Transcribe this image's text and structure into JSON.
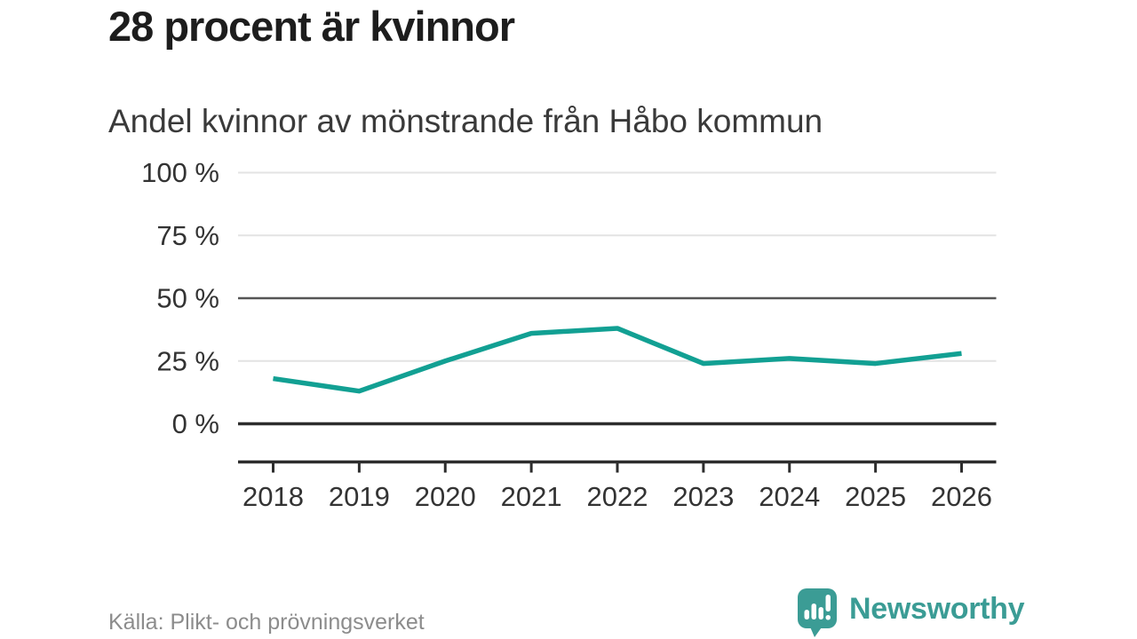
{
  "brand": {
    "name": "Newsworthy"
  },
  "colors": {
    "line": "#12a093",
    "brand_teal": "#3b9c95",
    "grid_light": "#e3e3e3",
    "grid_strong": "#555555",
    "axis": "#2d2d2d",
    "title_text": "#1d1d1d",
    "subtitle_text": "#3a3a3a",
    "tick_text": "#333333",
    "muted_text": "#8c8c8c"
  },
  "chart_data": {
    "type": "line",
    "title": "28 procent är kvinnor",
    "subtitle": "Andel kvinnor av mönstrande från Håbo kommun",
    "source": "Källa: Plikt- och prövningsverket",
    "xlabel": "",
    "ylabel": "",
    "unit": "%",
    "ylim": [
      0,
      100
    ],
    "grid": "horizontal",
    "legend": "none",
    "categories": [
      "2018",
      "2019",
      "2020",
      "2021",
      "2022",
      "2023",
      "2024",
      "2025",
      "2026"
    ],
    "series": [
      {
        "name": "Andel kvinnor",
        "values": [
          18,
          13,
          25,
          36,
          38,
          24,
          26,
          24,
          28
        ]
      }
    ],
    "yticks": [
      {
        "value": 100,
        "label": "100 %",
        "style": "light"
      },
      {
        "value": 75,
        "label": "75 %",
        "style": "light"
      },
      {
        "value": 50,
        "label": "50 %",
        "style": "strong"
      },
      {
        "value": 25,
        "label": "25 %",
        "style": "light"
      },
      {
        "value": 0,
        "label": "0 %",
        "style": "baseline"
      }
    ]
  }
}
